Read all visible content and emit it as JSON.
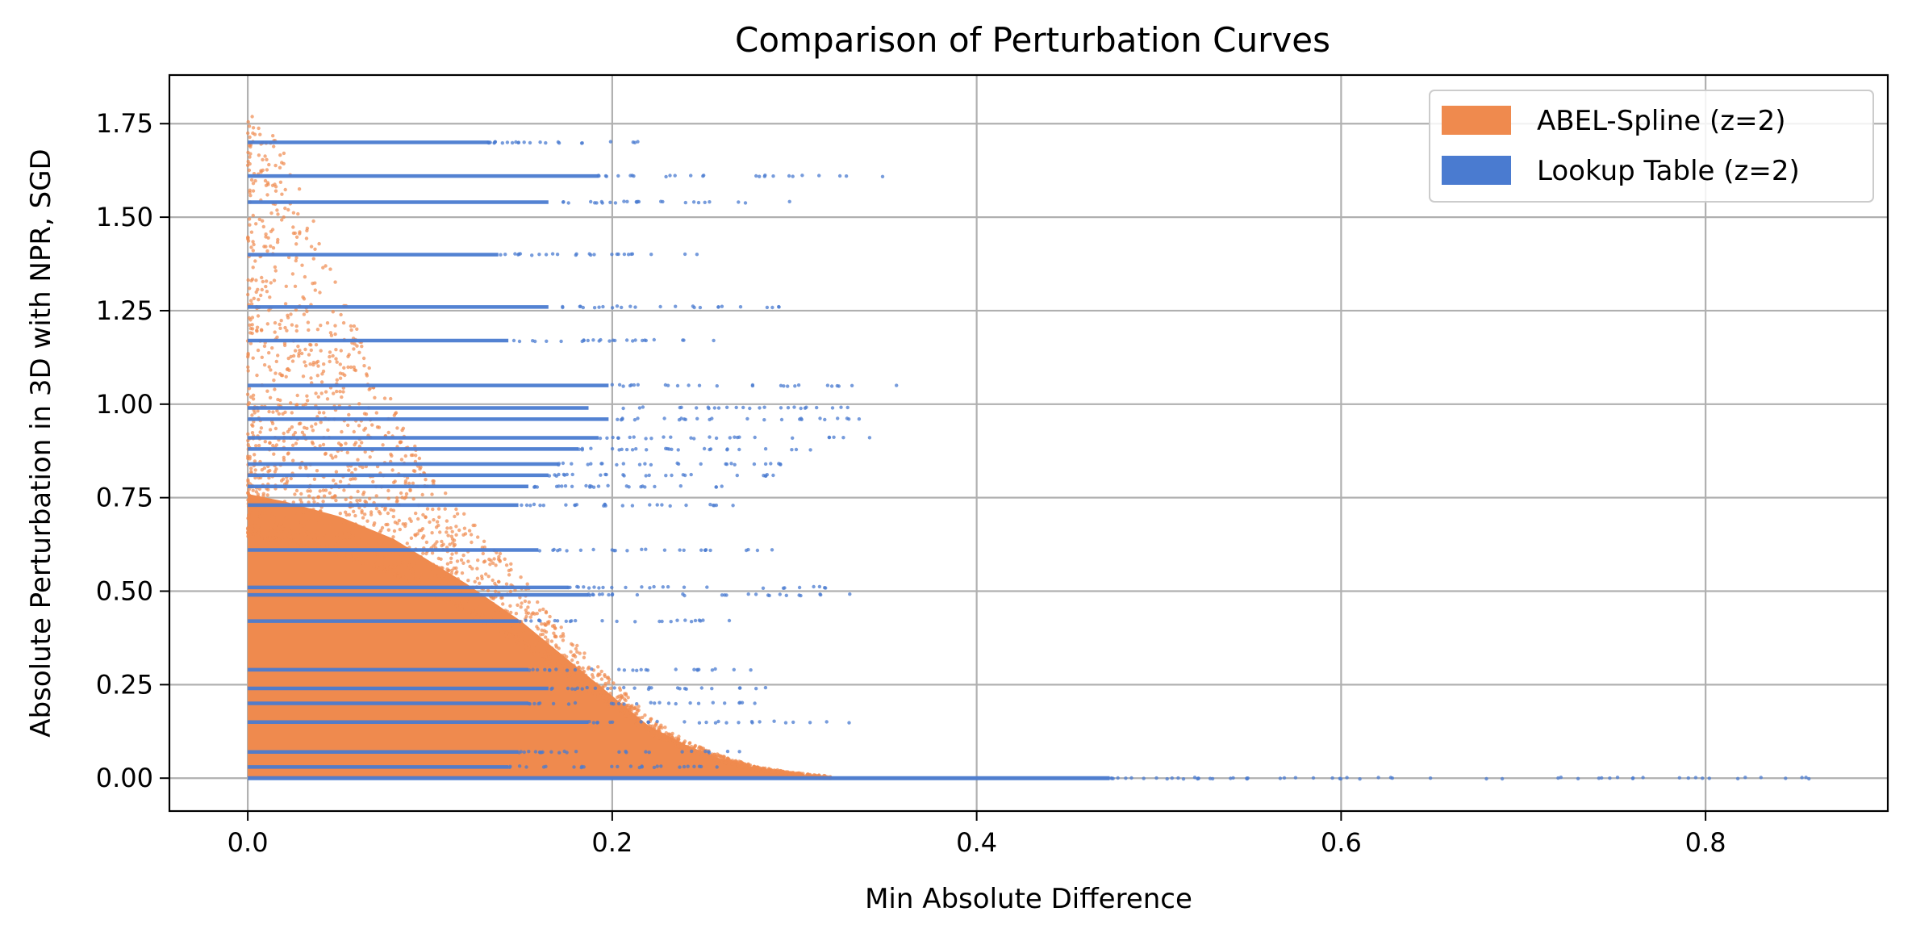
{
  "chart_data": {
    "type": "scatter",
    "title": "Comparison of Perturbation Curves",
    "xlabel": "Min Absolute Difference",
    "ylabel": "Absolute Perturbation in 3D with NPR, SGD",
    "xlim": [
      -0.043,
      0.9
    ],
    "ylim": [
      -0.088,
      1.88
    ],
    "xticks": [
      0.0,
      0.2,
      0.4,
      0.6,
      0.8
    ],
    "xtick_labels": [
      "0.0",
      "0.2",
      "0.4",
      "0.6",
      "0.8"
    ],
    "yticks": [
      0.0,
      0.25,
      0.5,
      0.75,
      1.0,
      1.25,
      1.5,
      1.75
    ],
    "ytick_labels": [
      "0.00",
      "0.25",
      "0.50",
      "0.75",
      "1.00",
      "1.25",
      "1.50",
      "1.75"
    ],
    "grid": true,
    "legend_position": "top-right",
    "series": [
      {
        "name": "ABEL-Spline (z=2)",
        "color": "#EF8A4E",
        "envelope": [
          [
            0.0,
            1.78
          ],
          [
            0.02,
            1.7
          ],
          [
            0.04,
            1.45
          ],
          [
            0.06,
            1.2
          ],
          [
            0.08,
            1.0
          ],
          [
            0.1,
            0.82
          ],
          [
            0.12,
            0.7
          ],
          [
            0.14,
            0.6
          ],
          [
            0.16,
            0.48
          ],
          [
            0.18,
            0.36
          ],
          [
            0.2,
            0.26
          ],
          [
            0.22,
            0.17
          ],
          [
            0.24,
            0.1
          ],
          [
            0.26,
            0.06
          ],
          [
            0.28,
            0.03
          ],
          [
            0.3,
            0.015
          ],
          [
            0.32,
            0.005
          ]
        ]
      },
      {
        "name": "Lookup Table (z=2)",
        "color": "#4A7BD0",
        "levels": [
          0.0,
          0.03,
          0.07,
          0.15,
          0.2,
          0.24,
          0.29,
          0.42,
          0.49,
          0.51,
          0.61,
          0.73,
          0.78,
          0.81,
          0.84,
          0.88,
          0.91,
          0.96,
          0.99,
          1.05,
          1.17,
          1.26,
          1.4,
          1.54,
          1.61,
          1.7
        ],
        "level_max_x": [
          0.86,
          0.26,
          0.27,
          0.34,
          0.28,
          0.3,
          0.28,
          0.27,
          0.34,
          0.32,
          0.29,
          0.27,
          0.28,
          0.3,
          0.31,
          0.33,
          0.35,
          0.36,
          0.34,
          0.36,
          0.26,
          0.3,
          0.25,
          0.3,
          0.35,
          0.24
        ]
      }
    ]
  }
}
